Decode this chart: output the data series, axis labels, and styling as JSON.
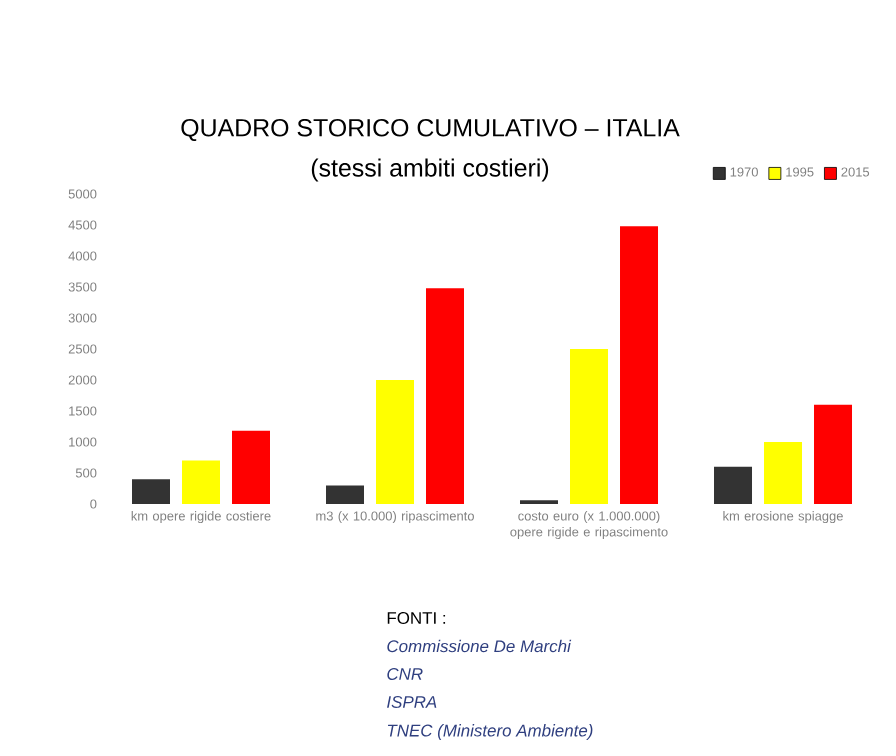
{
  "chart_data": {
    "type": "bar",
    "title": "QUADRO STORICO CUMULATIVO – ITALIA",
    "subtitle": "(stessi ambiti costieri)",
    "categories": [
      "km opere rigide costiere",
      "m3 (x 10.000) ripascimento",
      "costo euro (x 1.000.000) opere rigide e ripascimento",
      "km erosione spiagge"
    ],
    "series": [
      {
        "name": "1970",
        "color": "#333333",
        "values": [
          400,
          300,
          60,
          600
        ]
      },
      {
        "name": "1995",
        "color": "#ffff00",
        "values": [
          700,
          2000,
          2500,
          1000
        ]
      },
      {
        "name": "2015",
        "color": "#ff0000",
        "values": [
          1180,
          3480,
          4480,
          1600
        ]
      }
    ],
    "ylim": [
      0,
      5000
    ],
    "yticks": [
      0,
      500,
      1000,
      1500,
      2000,
      2500,
      3000,
      3500,
      4000,
      4500,
      5000
    ],
    "grid": false,
    "legend": "top right",
    "annotations": [
      "FONTI :",
      "Commissione De Marchi",
      "CNR",
      "ISPRA",
      "TNEC (Ministero Ambiente)"
    ]
  }
}
